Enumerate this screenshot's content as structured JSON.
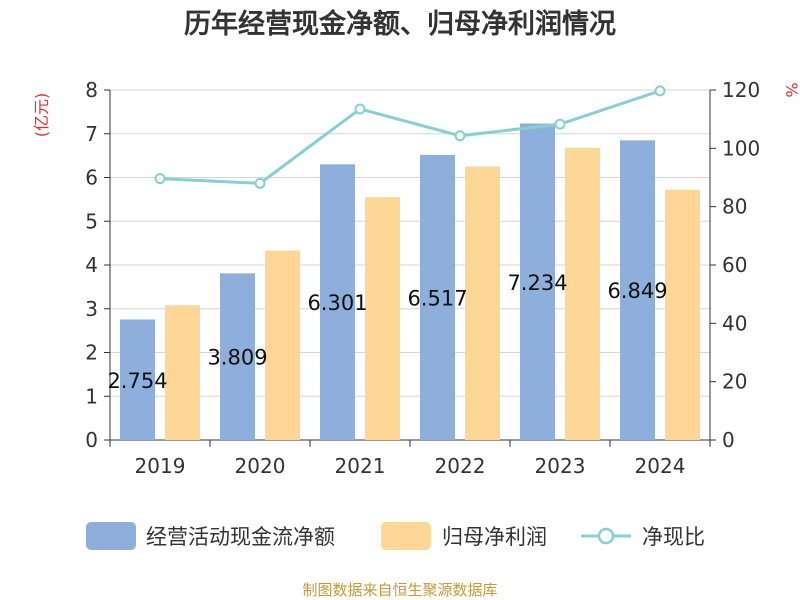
{
  "chart_data": {
    "type": "bar",
    "title": "历年经营现金净额、归母净利润情况",
    "categories": [
      "2019",
      "2020",
      "2021",
      "2022",
      "2023",
      "2024"
    ],
    "series": [
      {
        "name": "经营活动现金流净额",
        "type": "bar",
        "axis": "left",
        "values": [
          2.754,
          3.809,
          6.301,
          6.517,
          7.234,
          6.849
        ],
        "labels": [
          "2.754",
          "3.809",
          "6.301",
          "6.517",
          "7.234",
          "6.849"
        ]
      },
      {
        "name": "归母净利润",
        "type": "bar",
        "axis": "left",
        "values": [
          3.08,
          4.33,
          5.55,
          6.25,
          6.68,
          5.72
        ]
      },
      {
        "name": "净现比",
        "type": "line",
        "axis": "right",
        "values": [
          89.6,
          88.0,
          113.5,
          104.3,
          108.3,
          119.7
        ]
      }
    ],
    "y_left": {
      "label": "(亿元)",
      "min": 0,
      "max": 8,
      "ticks": [
        0,
        1,
        2,
        3,
        4,
        5,
        6,
        7,
        8
      ]
    },
    "y_right": {
      "label": "%",
      "min": 0,
      "max": 120,
      "ticks": [
        0,
        20,
        40,
        60,
        80,
        100,
        120
      ]
    },
    "grid": true,
    "legend_position": "bottom",
    "colors": {
      "bar1": "#8eaedc",
      "bar2": "#fed797",
      "line": "#84d0d4",
      "unit": "#e03030",
      "source": "#c49a3a"
    }
  },
  "source": "制图数据来自恒生聚源数据库"
}
